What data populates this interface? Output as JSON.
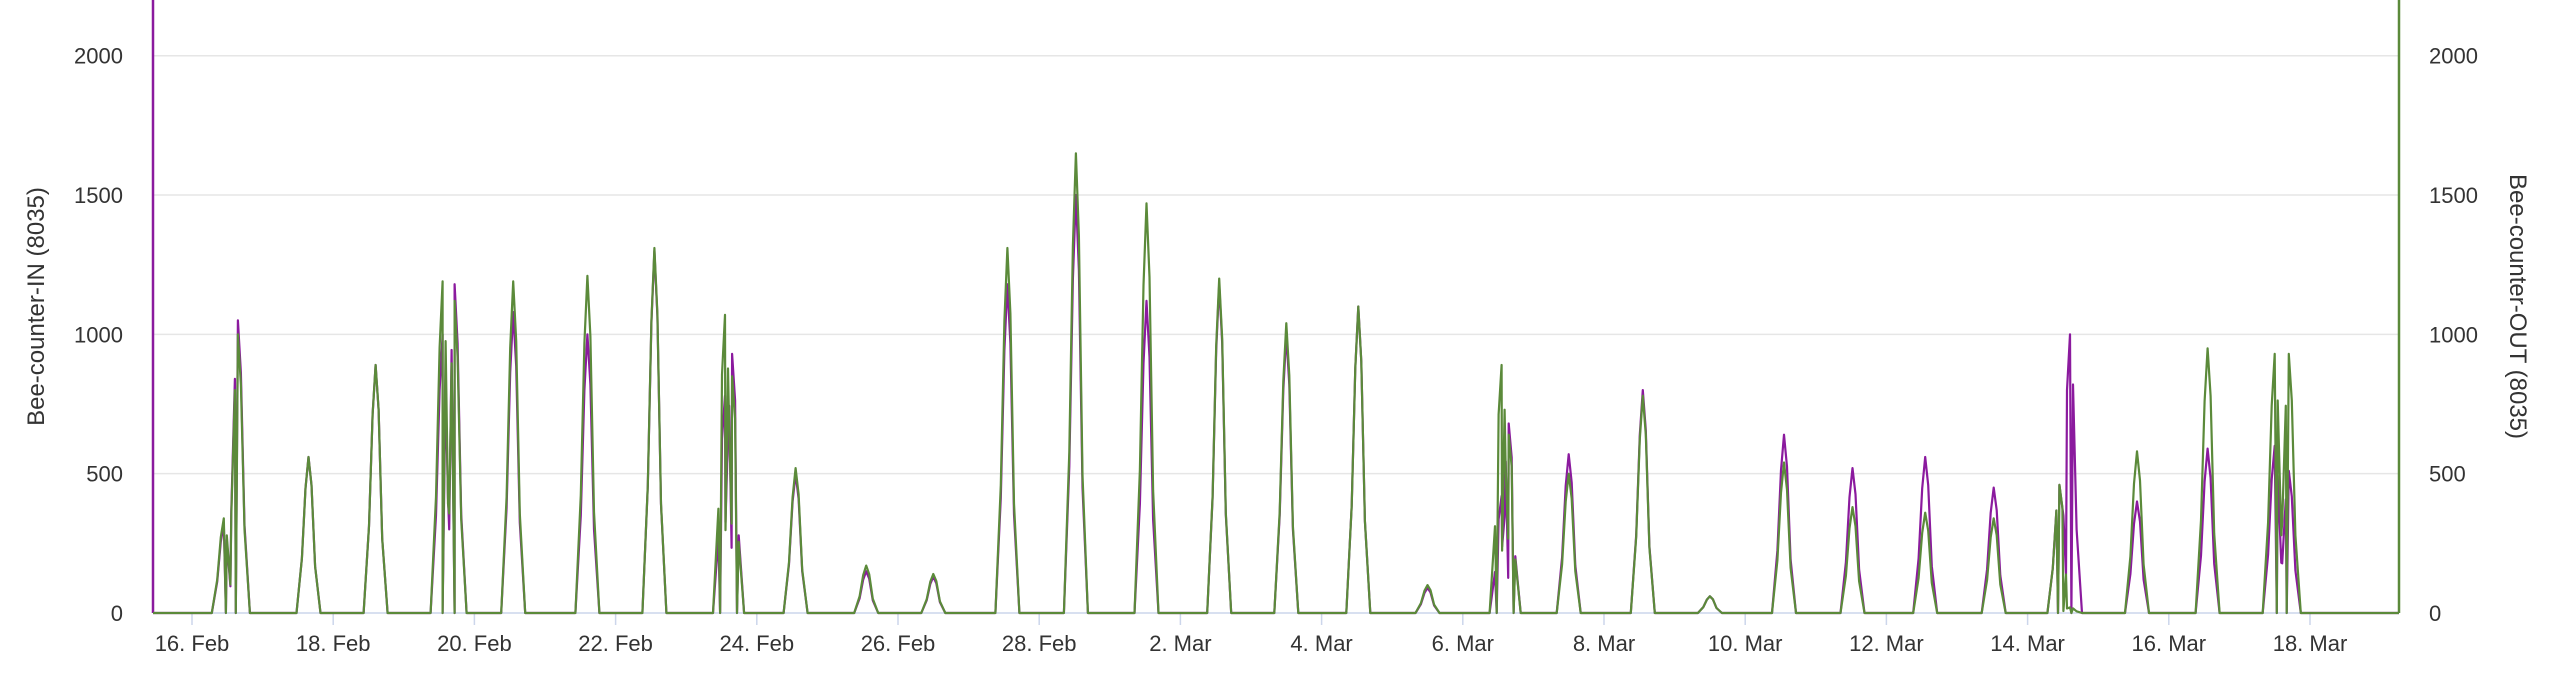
{
  "chart_data": {
    "type": "line",
    "title": "",
    "xlabel": "",
    "grid": true,
    "legend": "none",
    "x_ticks": [
      "16. Feb",
      "18. Feb",
      "20. Feb",
      "22. Feb",
      "24. Feb",
      "26. Feb",
      "28. Feb",
      "2. Mar",
      "4. Mar",
      "6. Mar",
      "8. Mar",
      "10. Mar",
      "12. Mar",
      "14. Mar",
      "16. Mar",
      "18. Mar"
    ],
    "xlim": [
      "15. Feb 12:00",
      "19. Mar 12:00"
    ],
    "y_left": {
      "label": "Bee-counter-IN (8035)",
      "range": [
        0,
        2200
      ],
      "ticks": [
        0,
        500,
        1000,
        1500,
        2000
      ]
    },
    "y_right": {
      "label": "Bee-counter-OUT (8035)",
      "range": [
        0,
        2200
      ],
      "ticks": [
        0,
        500,
        1000,
        1500,
        2000
      ]
    },
    "series": [
      {
        "name": "Bee-counter-IN (8035)",
        "color": "#8b1a9e",
        "axis": "left",
        "peaks": [
          [
            0.45,
            320
          ],
          [
            0.65,
            1050
          ],
          [
            1.65,
            560
          ],
          [
            2.6,
            890
          ],
          [
            3.55,
            1000
          ],
          [
            3.72,
            1180
          ],
          [
            4.55,
            1080
          ],
          [
            5.6,
            1000
          ],
          [
            6.55,
            1300
          ],
          [
            7.55,
            780
          ],
          [
            7.65,
            930
          ],
          [
            8.55,
            500
          ],
          [
            9.55,
            150
          ],
          [
            10.5,
            130
          ],
          [
            11.55,
            1180
          ],
          [
            12.52,
            1500
          ],
          [
            13.52,
            1120
          ],
          [
            14.55,
            1180
          ],
          [
            15.5,
            1000
          ],
          [
            16.52,
            1100
          ],
          [
            17.5,
            90
          ],
          [
            18.55,
            420
          ],
          [
            18.65,
            680
          ],
          [
            19.5,
            570
          ],
          [
            20.55,
            800
          ],
          [
            21.5,
            60
          ],
          [
            22.55,
            640
          ],
          [
            23.52,
            520
          ],
          [
            24.55,
            560
          ],
          [
            25.52,
            450
          ],
          [
            26.45,
            460
          ],
          [
            26.6,
            1000
          ],
          [
            27.55,
            400
          ],
          [
            28.55,
            590
          ],
          [
            29.5,
            600
          ],
          [
            29.7,
            510
          ]
        ]
      },
      {
        "name": "Bee-counter-OUT (8035)",
        "color": "#5b8a3a",
        "axis": "right",
        "peaks": [
          [
            0.45,
            340
          ],
          [
            0.65,
            1000
          ],
          [
            1.65,
            560
          ],
          [
            2.6,
            890
          ],
          [
            3.55,
            1190
          ],
          [
            3.72,
            1120
          ],
          [
            4.55,
            1190
          ],
          [
            5.6,
            1210
          ],
          [
            6.55,
            1310
          ],
          [
            7.55,
            1070
          ],
          [
            7.65,
            850
          ],
          [
            8.55,
            520
          ],
          [
            9.55,
            170
          ],
          [
            10.5,
            140
          ],
          [
            11.55,
            1310
          ],
          [
            12.52,
            1650
          ],
          [
            13.52,
            1470
          ],
          [
            14.55,
            1200
          ],
          [
            15.5,
            1040
          ],
          [
            16.52,
            1100
          ],
          [
            17.5,
            100
          ],
          [
            18.55,
            890
          ],
          [
            18.65,
            640
          ],
          [
            19.5,
            500
          ],
          [
            20.55,
            780
          ],
          [
            21.5,
            60
          ],
          [
            22.55,
            540
          ],
          [
            23.52,
            380
          ],
          [
            24.55,
            360
          ],
          [
            25.52,
            340
          ],
          [
            26.45,
            460
          ],
          [
            26.6,
            20
          ],
          [
            27.55,
            580
          ],
          [
            28.55,
            950
          ],
          [
            29.5,
            930
          ],
          [
            29.7,
            930
          ]
        ]
      }
    ]
  }
}
